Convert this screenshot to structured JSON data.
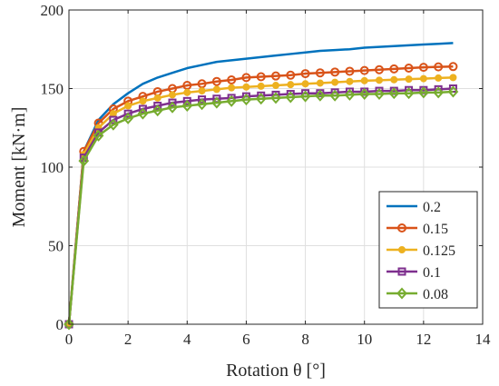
{
  "chart_data": {
    "type": "line",
    "xlabel": "Rotation θ [°]",
    "ylabel": "Moment [kN·m]",
    "xlim": [
      0,
      14
    ],
    "ylim": [
      0,
      200
    ],
    "x_ticks": [
      "0",
      "2",
      "4",
      "6",
      "8",
      "10",
      "12",
      "14"
    ],
    "y_ticks": [
      "0",
      "50",
      "100",
      "150",
      "200"
    ],
    "grid": true,
    "legend_position": "lower-right",
    "x": [
      0,
      0.5,
      1,
      1.5,
      2,
      2.5,
      3,
      3.5,
      4,
      4.5,
      5,
      5.5,
      6,
      6.5,
      7,
      7.5,
      8,
      8.5,
      9,
      9.5,
      10,
      10.5,
      11,
      11.5,
      12,
      12.5,
      13
    ],
    "series": [
      {
        "name": "0.2",
        "color": "#0072BD",
        "marker": "none",
        "values": [
          0,
          110,
          130,
          140,
          147,
          153,
          157,
          160,
          163,
          165,
          167,
          168,
          169,
          170,
          171,
          172,
          173,
          174,
          174.5,
          175,
          176,
          176.5,
          177,
          177.5,
          178,
          178.5,
          179
        ]
      },
      {
        "name": "0.15",
        "color": "#D95319",
        "marker": "circle",
        "values": [
          0,
          110,
          128,
          137,
          142,
          145,
          148,
          150,
          152,
          153,
          154.5,
          155.5,
          157,
          157.5,
          158,
          158.5,
          159.5,
          160,
          160.5,
          161,
          161.5,
          162,
          162.5,
          163,
          163.5,
          163.8,
          164
        ]
      },
      {
        "name": "0.125",
        "color": "#EDB120",
        "marker": "dot",
        "values": [
          0,
          108,
          125,
          134,
          139,
          142,
          144,
          146,
          147.5,
          148.5,
          149.5,
          150.5,
          151,
          151.5,
          152,
          152.5,
          153,
          153.5,
          154,
          154.5,
          155,
          155.3,
          155.6,
          156,
          156.3,
          156.7,
          157
        ]
      },
      {
        "name": "0.1",
        "color": "#7E2F8E",
        "marker": "square",
        "values": [
          0,
          106,
          122,
          130,
          134,
          137,
          139,
          141,
          142,
          143,
          143.5,
          144,
          145,
          145.5,
          146,
          146.5,
          147,
          147,
          147.5,
          148,
          148,
          148.5,
          148.5,
          149,
          149,
          149.5,
          150
        ]
      },
      {
        "name": "0.08",
        "color": "#77AC30",
        "marker": "diamond",
        "values": [
          0,
          104,
          120,
          127,
          131,
          134,
          136,
          138,
          139,
          140,
          141,
          142,
          143,
          143.5,
          144,
          144.5,
          145,
          145.5,
          145.5,
          146,
          146.5,
          146.5,
          147,
          147,
          147.5,
          147.5,
          148
        ]
      }
    ]
  }
}
